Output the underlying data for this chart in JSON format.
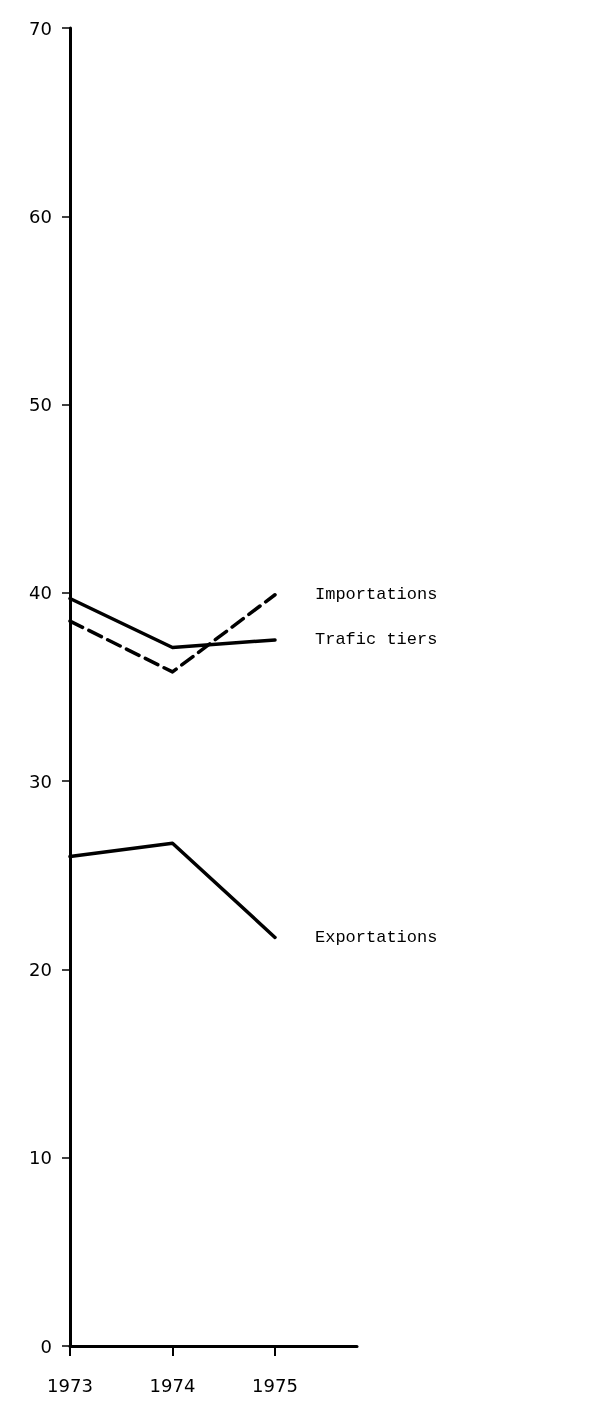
{
  "chart_data": {
    "type": "line",
    "x": [
      1973,
      1974,
      1975
    ],
    "xlim": [
      1973,
      1975.8
    ],
    "xticks": [
      1973,
      1974,
      1975
    ],
    "ylim": [
      0,
      70
    ],
    "yticks": [
      0,
      10,
      20,
      30,
      40,
      50,
      60,
      70
    ],
    "grid": false,
    "legend": false,
    "marker": "none",
    "series": [
      {
        "name": "Importations",
        "color": "#000000",
        "line_style": "dashed",
        "values": [
          38.5,
          35.8,
          39.9
        ]
      },
      {
        "name": "Trafic tiers",
        "color": "#000000",
        "line_style": "solid",
        "values": [
          39.7,
          37.1,
          37.5
        ]
      },
      {
        "name": "Exportations",
        "color": "#000000",
        "line_style": "solid",
        "values": [
          26,
          26.7,
          21.7
        ]
      }
    ]
  }
}
